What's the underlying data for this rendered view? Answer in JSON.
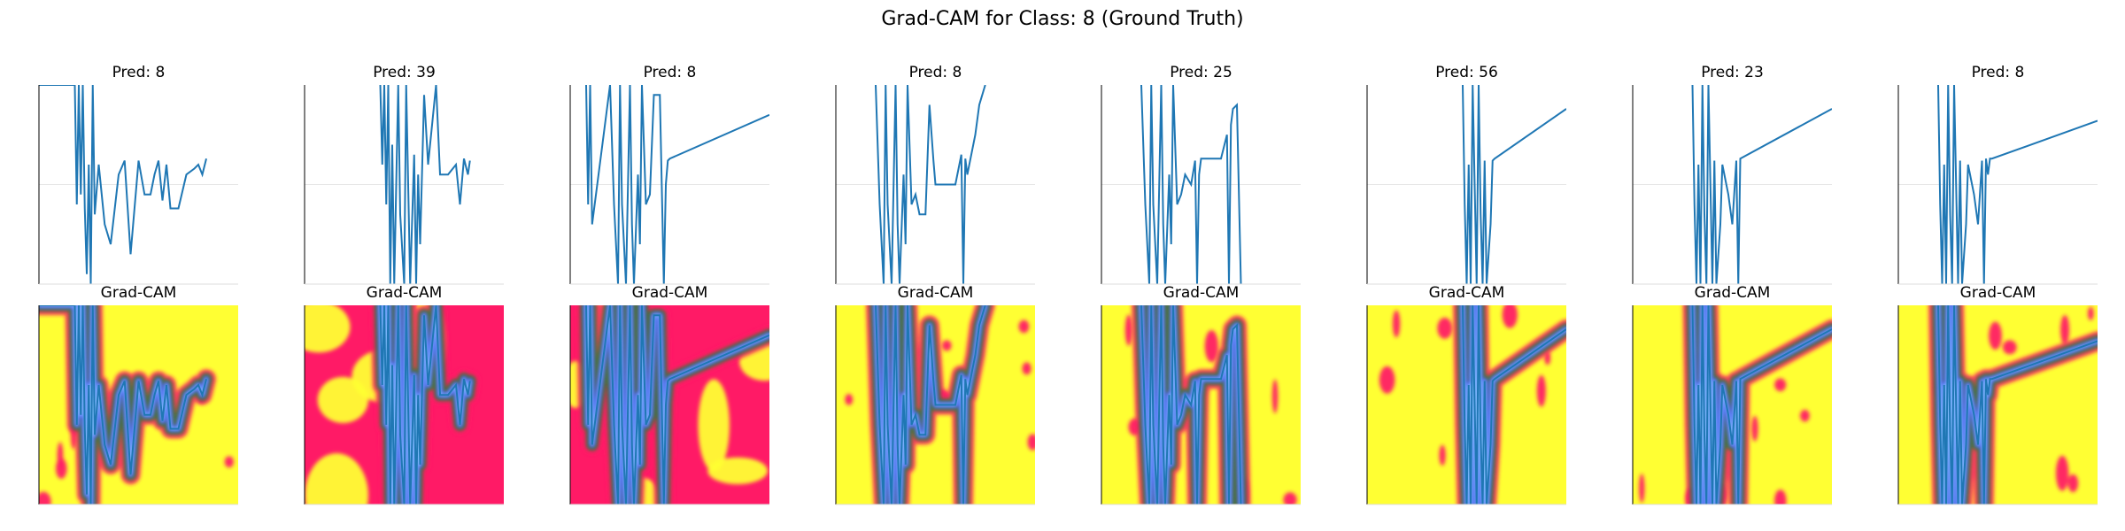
{
  "figure": {
    "title": "Grad-CAM for Class: 8 (Ground Truth)"
  },
  "chart_data": [
    {
      "type": "line",
      "row": "signal",
      "column": 1,
      "title": "Pred: 8",
      "x": [
        0.0,
        0.02,
        0.08,
        0.18,
        0.19,
        0.2,
        0.21,
        0.22,
        0.23,
        0.24,
        0.25,
        0.26,
        0.27,
        0.28,
        0.3,
        0.33,
        0.36,
        0.4,
        0.43,
        0.46,
        0.5,
        0.53,
        0.56,
        0.58,
        0.6,
        0.62,
        0.64,
        0.66,
        0.7,
        0.74,
        0.78,
        0.8,
        0.82,
        0.84
      ],
      "y": [
        1.0,
        1.0,
        1.0,
        1.0,
        0.4,
        1.0,
        0.45,
        1.0,
        0.38,
        0.05,
        0.6,
        0.0,
        1.0,
        0.35,
        0.6,
        0.3,
        0.2,
        0.55,
        0.62,
        0.15,
        0.62,
        0.45,
        0.45,
        0.55,
        0.62,
        0.42,
        0.6,
        0.38,
        0.38,
        0.55,
        0.58,
        0.6,
        0.55,
        0.63
      ]
    },
    {
      "type": "line",
      "row": "signal",
      "column": 2,
      "title": "Pred: 39",
      "x": [
        0.38,
        0.39,
        0.4,
        0.41,
        0.42,
        0.43,
        0.44,
        0.45,
        0.47,
        0.48,
        0.5,
        0.51,
        0.52,
        0.53,
        0.55,
        0.56,
        0.57,
        0.58,
        0.6,
        0.62,
        0.66,
        0.68,
        0.72,
        0.76,
        0.78,
        0.8,
        0.82,
        0.83
      ],
      "y": [
        1.0,
        0.6,
        1.0,
        0.4,
        1.0,
        0.0,
        0.7,
        0.0,
        1.0,
        0.35,
        0.0,
        1.0,
        0.5,
        0.0,
        0.65,
        0.0,
        0.55,
        0.2,
        0.95,
        0.6,
        1.0,
        0.55,
        0.55,
        0.6,
        0.4,
        0.63,
        0.55,
        0.62
      ]
    },
    {
      "type": "line",
      "row": "signal",
      "column": 3,
      "title": "Pred: 8",
      "x": [
        0.08,
        0.09,
        0.1,
        0.11,
        0.2,
        0.22,
        0.24,
        0.25,
        0.26,
        0.28,
        0.3,
        0.31,
        0.32,
        0.34,
        0.35,
        0.36,
        0.38,
        0.4,
        0.42,
        0.45,
        0.47,
        0.48,
        0.49,
        0.5,
        1.0
      ],
      "y": [
        1.0,
        0.4,
        1.0,
        0.3,
        1.0,
        0.4,
        0.0,
        1.0,
        0.4,
        0.0,
        1.0,
        0.3,
        0.0,
        0.55,
        0.2,
        1.0,
        0.4,
        0.45,
        0.95,
        0.95,
        0.0,
        0.5,
        0.62,
        0.63,
        0.85
      ]
    },
    {
      "type": "line",
      "row": "signal",
      "column": 4,
      "title": "Pred: 8",
      "x": [
        0.2,
        0.22,
        0.24,
        0.25,
        0.26,
        0.28,
        0.3,
        0.31,
        0.32,
        0.34,
        0.35,
        0.36,
        0.38,
        0.4,
        0.42,
        0.45,
        0.47,
        0.49,
        0.5,
        0.6,
        0.63,
        0.64,
        0.65,
        0.66,
        0.7,
        0.72,
        0.75
      ],
      "y": [
        1.0,
        0.4,
        0.0,
        1.0,
        0.4,
        0.0,
        1.0,
        0.3,
        0.0,
        0.55,
        0.2,
        1.0,
        0.4,
        0.45,
        0.35,
        0.35,
        0.9,
        0.62,
        0.5,
        0.5,
        0.65,
        0.0,
        0.63,
        0.55,
        0.75,
        0.9,
        1.0
      ]
    },
    {
      "type": "line",
      "row": "signal",
      "column": 5,
      "title": "Pred: 25",
      "x": [
        0.2,
        0.22,
        0.24,
        0.25,
        0.26,
        0.28,
        0.3,
        0.31,
        0.32,
        0.34,
        0.35,
        0.36,
        0.38,
        0.4,
        0.42,
        0.45,
        0.47,
        0.48,
        0.49,
        0.5,
        0.6,
        0.63,
        0.64,
        0.65,
        0.66,
        0.68,
        0.7
      ],
      "y": [
        1.0,
        0.4,
        0.0,
        1.0,
        0.4,
        0.0,
        1.0,
        0.3,
        0.0,
        0.55,
        0.2,
        1.0,
        0.4,
        0.45,
        0.55,
        0.5,
        0.62,
        0.0,
        0.55,
        0.63,
        0.63,
        0.75,
        0.0,
        0.8,
        0.88,
        0.9,
        0.0
      ]
    },
    {
      "type": "line",
      "row": "signal",
      "column": 6,
      "title": "Pred: 56",
      "x": [
        0.48,
        0.49,
        0.5,
        0.51,
        0.52,
        0.53,
        0.54,
        0.55,
        0.56,
        0.57,
        0.58,
        0.59,
        0.6,
        0.62,
        0.63,
        0.64,
        1.0
      ],
      "y": [
        1.0,
        0.4,
        0.0,
        0.6,
        0.0,
        1.0,
        0.5,
        0.0,
        1.0,
        0.35,
        0.0,
        0.62,
        0.0,
        0.3,
        0.62,
        0.63,
        0.88
      ]
    },
    {
      "type": "line",
      "row": "signal",
      "column": 7,
      "title": "Pred: 23",
      "x": [
        0.3,
        0.31,
        0.32,
        0.33,
        0.34,
        0.35,
        0.36,
        0.37,
        0.38,
        0.39,
        0.4,
        0.41,
        0.42,
        0.44,
        0.45,
        0.46,
        0.48,
        0.5,
        0.52,
        0.53,
        0.54,
        1.0
      ],
      "y": [
        1.0,
        0.4,
        0.0,
        0.6,
        0.0,
        1.0,
        0.35,
        0.0,
        1.0,
        0.5,
        0.0,
        0.62,
        0.0,
        0.3,
        0.6,
        0.55,
        0.45,
        0.3,
        0.62,
        0.0,
        0.63,
        0.88
      ]
    },
    {
      "type": "line",
      "row": "signal",
      "column": 8,
      "title": "Pred: 8",
      "x": [
        0.2,
        0.21,
        0.22,
        0.23,
        0.24,
        0.25,
        0.26,
        0.27,
        0.28,
        0.29,
        0.3,
        0.31,
        0.32,
        0.34,
        0.35,
        0.36,
        0.38,
        0.4,
        0.42,
        0.43,
        0.44,
        0.45,
        0.46,
        0.47,
        1.0
      ],
      "y": [
        1.0,
        0.4,
        0.0,
        0.6,
        0.0,
        1.0,
        0.35,
        0.0,
        1.0,
        0.5,
        0.0,
        0.62,
        0.0,
        0.3,
        0.6,
        0.55,
        0.45,
        0.3,
        0.62,
        0.0,
        0.63,
        0.55,
        0.63,
        0.63,
        0.82
      ]
    },
    {
      "type": "heatmap",
      "row": "gradcam",
      "column": 1,
      "title": "Grad-CAM",
      "base_color": "#ffff33",
      "signal_from_column": 1
    },
    {
      "type": "heatmap",
      "row": "gradcam",
      "column": 2,
      "title": "Grad-CAM",
      "base_color": "#ff1a66",
      "signal_from_column": 2
    },
    {
      "type": "heatmap",
      "row": "gradcam",
      "column": 3,
      "title": "Grad-CAM",
      "base_color": "#ff1a66",
      "signal_from_column": 3
    },
    {
      "type": "heatmap",
      "row": "gradcam",
      "column": 4,
      "title": "Grad-CAM",
      "base_color": "#ffff33",
      "signal_from_column": 4
    },
    {
      "type": "heatmap",
      "row": "gradcam",
      "column": 5,
      "title": "Grad-CAM",
      "base_color": "#ffff33",
      "signal_from_column": 5
    },
    {
      "type": "heatmap",
      "row": "gradcam",
      "column": 6,
      "title": "Grad-CAM",
      "base_color": "#ffff33",
      "signal_from_column": 6
    },
    {
      "type": "heatmap",
      "row": "gradcam",
      "column": 7,
      "title": "Grad-CAM",
      "base_color": "#ffff33",
      "signal_from_column": 7
    },
    {
      "type": "heatmap",
      "row": "gradcam",
      "column": 8,
      "title": "Grad-CAM",
      "base_color": "#ffff33",
      "signal_from_column": 8
    }
  ],
  "colors": {
    "line": "#1f77b4",
    "yellow": "#ffff33",
    "magenta": "#ff1a66",
    "green": "#2e7d32",
    "blue": "#4455ff",
    "gridline": "#e6e6e6",
    "spine": "#000000"
  }
}
